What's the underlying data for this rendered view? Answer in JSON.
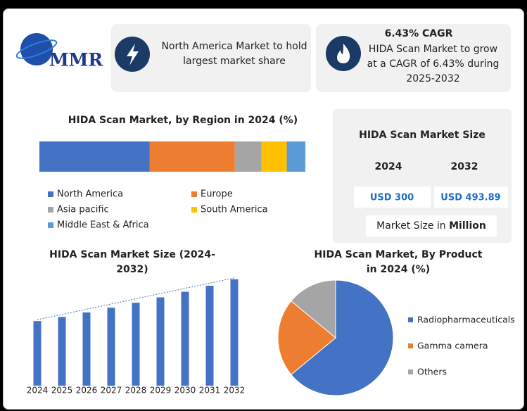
{
  "header": {
    "logo": "MMR",
    "card_1": {
      "text": "North America Market to hold largest market share"
    },
    "card_2": {
      "title": "6.43% CAGR",
      "text": "HIDA Scan Market to grow at a CAGR of 6.43% during 2025-2032"
    }
  },
  "market_size": {
    "title": "HIDA Scan Market Size",
    "years": [
      "2024",
      "2032"
    ],
    "values": [
      "USD 300",
      "USD 493.89"
    ],
    "note": "Market Size in",
    "note_unit": "Million"
  },
  "chart_data": [
    {
      "type": "stacked_bar",
      "title": "HIDA Scan Market, by Region in 2024 (%)",
      "xlim": [
        0,
        100
      ],
      "series": [
        {
          "name": "North America",
          "color": "#4472c4",
          "values": [
            41.5
          ]
        },
        {
          "name": "Europe",
          "color": "#ed7d31",
          "values": [
            32
          ]
        },
        {
          "name": "Asia pacific",
          "color": "#a5a5a5",
          "values": [
            10
          ]
        },
        {
          "name": "South America",
          "color": "#ffc000",
          "values": [
            9.5
          ]
        },
        {
          "name": "Middle East & Africa",
          "color": "#5b9bd5",
          "values": [
            7
          ]
        }
      ]
    },
    {
      "type": "bar",
      "title": "HIDA Scan Market Size (2024-2032)",
      "color": "#4472c4",
      "categories": [
        "2024",
        "2025",
        "2026",
        "2027",
        "2028",
        "2029",
        "2030",
        "2031",
        "2032"
      ],
      "values": [
        300,
        319,
        340,
        362,
        385,
        410,
        436,
        464,
        493.89
      ],
      "ylim": [
        0,
        500
      ]
    },
    {
      "type": "pie",
      "title": "HIDA Scan Market, By Product in 2024 (%)",
      "categories": [
        "Radiopharmaceuticals",
        "Gamma camera",
        "Others"
      ],
      "values": [
        64,
        22,
        14
      ],
      "colors": [
        "#4472c4",
        "#ed7d31",
        "#a5a5a5"
      ],
      "legend": "right"
    }
  ]
}
